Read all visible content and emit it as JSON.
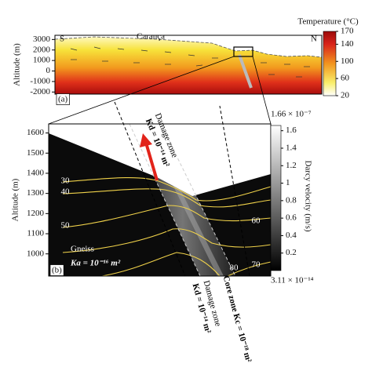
{
  "chart_data": [
    {
      "type": "heatmap",
      "panel_label": "(a)",
      "ylabel": "Altitude (m)",
      "ylim": [
        -2200,
        3400
      ],
      "yticks": [
        3000,
        2000,
        1000,
        0,
        -1000,
        -2000
      ],
      "annotations": [
        "S",
        "N",
        "Carança"
      ],
      "colorbar": {
        "title": "Temperature (°C)",
        "lim": [
          20,
          170
        ],
        "ticks": [
          170,
          140,
          100,
          60,
          20
        ]
      }
    },
    {
      "type": "heatmap",
      "panel_label": "(b)",
      "ylabel": "Altitude (m)",
      "ylim": [
        890,
        1645
      ],
      "yticks": [
        1600,
        1500,
        1400,
        1300,
        1200,
        1100,
        1000
      ],
      "contour_labels": [
        30,
        40,
        50,
        60,
        70,
        80
      ],
      "annotations": [
        "Damage zone",
        "Kd = 10⁻¹⁴ m²",
        "Gneiss",
        "Ka = 10⁻¹⁶ m²",
        "Core zone Kc = 10⁻¹⁸ m²",
        "Damage zone",
        "Kd = 10⁻¹⁴ m²"
      ],
      "colorbar": {
        "title": "Darcy velocity (m/s)",
        "lim": [
          0,
          1.66
        ],
        "ticks": [
          1.6,
          1.4,
          1.2,
          1,
          0.8,
          0.6,
          0.4,
          0.2
        ],
        "max_label": "1.66 × 10⁻⁷",
        "min_label": "3.11 × 10⁻¹⁴"
      }
    }
  ]
}
